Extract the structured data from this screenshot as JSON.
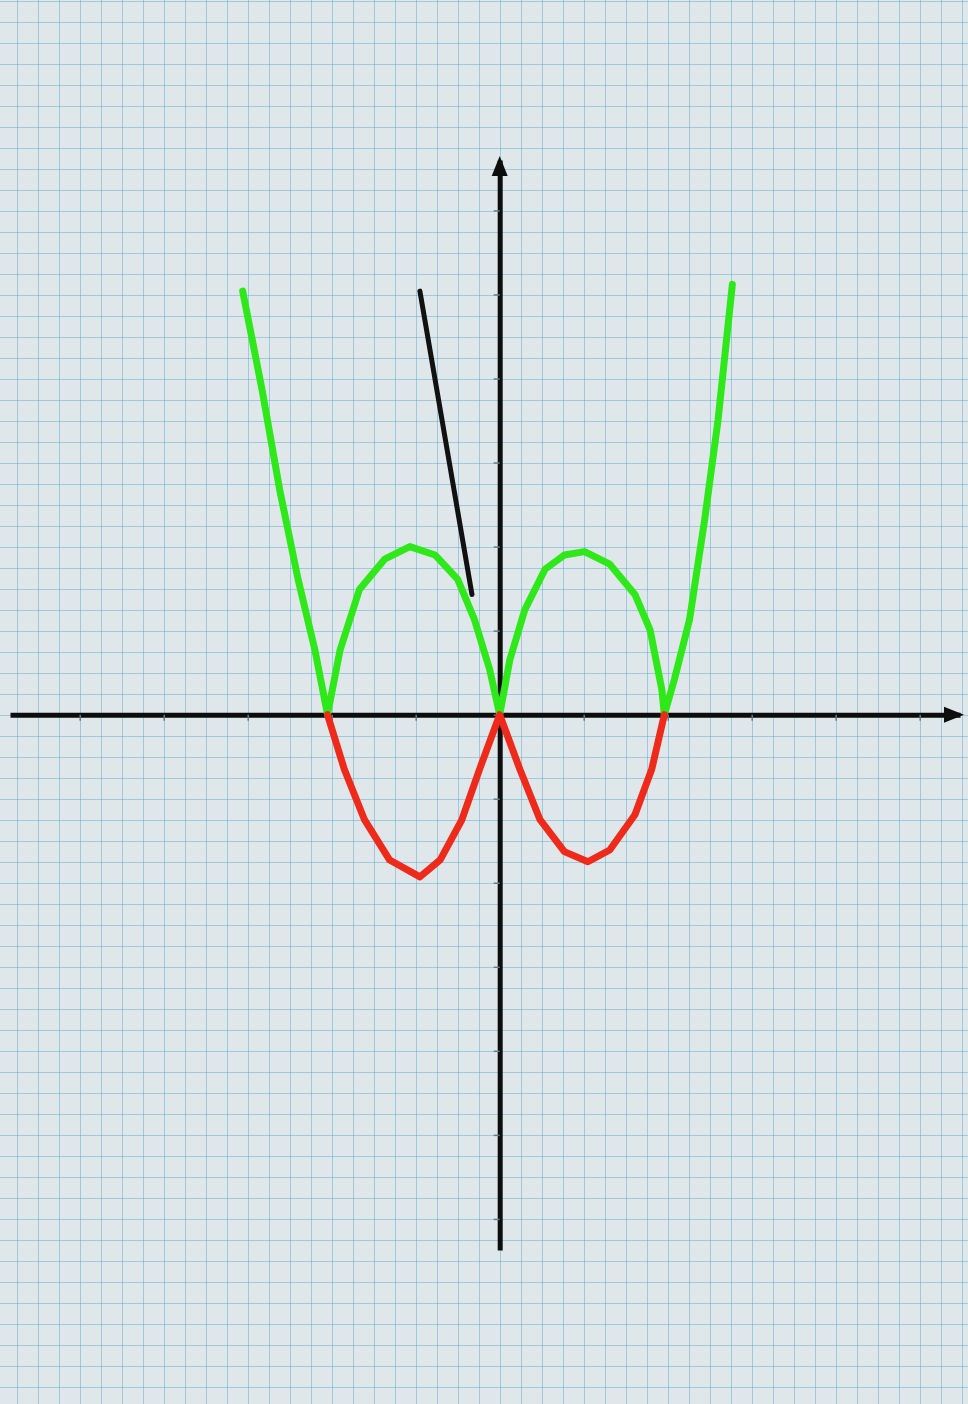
{
  "chart_data": {
    "type": "line",
    "xlim": [
      -5.83,
      5.48
    ],
    "ylim": [
      -6.37,
      6.6
    ],
    "xticks": [
      -5,
      -4,
      -3,
      -2,
      -1,
      0,
      1,
      2,
      3,
      4,
      5
    ],
    "yticks": [
      -6,
      -5,
      -4,
      -3,
      -2,
      -1,
      0,
      1,
      2,
      3,
      4,
      5,
      6
    ],
    "tick_labels": false,
    "series": [
      {
        "color": "#2ee81a",
        "x": [
          -3.06,
          -2.83,
          -2.62,
          -2.4,
          -2.2,
          -2.05,
          -1.9,
          -1.67,
          -1.37,
          -1.07,
          -0.77,
          -0.5,
          -0.3,
          -0.12,
          0,
          0.12,
          0.3,
          0.54,
          0.77,
          1.01,
          1.31,
          1.61,
          1.79,
          1.93,
          1.96,
          2.08,
          2.26,
          2.44,
          2.6,
          2.77
        ],
        "values": [
          5.04,
          3.87,
          2.68,
          1.61,
          0.77,
          0,
          0.77,
          1.49,
          1.85,
          2.0,
          1.9,
          1.61,
          1.13,
          0.54,
          0,
          0.65,
          1.25,
          1.73,
          1.9,
          1.94,
          1.79,
          1.43,
          1.01,
          0.3,
          0,
          0.42,
          1.13,
          2.32,
          3.51,
          5.12
        ]
      },
      {
        "color": "#ee2a1a",
        "x": [
          -2.05,
          -1.85,
          -1.61,
          -1.31,
          -0.95,
          -0.71,
          -0.45,
          -0.24,
          0,
          0.24,
          0.48,
          0.77,
          1.05,
          1.31,
          1.61,
          1.81,
          1.96
        ],
        "values": [
          0,
          -0.65,
          -1.25,
          -1.73,
          -1.93,
          -1.73,
          -1.25,
          -0.65,
          0,
          -0.65,
          -1.25,
          -1.63,
          -1.75,
          -1.61,
          -1.19,
          -0.65,
          0
        ]
      },
      {
        "color": "#111111",
        "x": [
          -0.95,
          -0.33
        ],
        "values": [
          5.04,
          1.43
        ]
      }
    ]
  }
}
